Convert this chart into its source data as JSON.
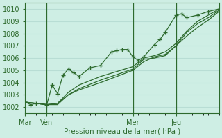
{
  "bg_color": "#ceeee4",
  "grid_color": "#b8ddd4",
  "line_color": "#2d6a2d",
  "marker_color": "#2d6a2d",
  "title": "Pression niveau de la mer( hPa )",
  "ylabel_ticks": [
    1002,
    1003,
    1004,
    1005,
    1006,
    1007,
    1008,
    1009,
    1010
  ],
  "ylim": [
    1001.5,
    1010.5
  ],
  "xlim": [
    0,
    108
  ],
  "day_labels": [
    [
      "Mar",
      0
    ],
    [
      "Ven",
      12
    ],
    [
      "Mer",
      60
    ],
    [
      "Jeu",
      84
    ]
  ],
  "day_vlines": [
    0,
    12,
    60,
    84
  ],
  "series": [
    [
      0,
      1002.4,
      3,
      1002.2,
      6,
      1002.3,
      12,
      1002.2,
      15,
      1003.8,
      18,
      1003.1,
      21,
      1004.6,
      24,
      1005.1,
      27,
      1004.8,
      30,
      1004.5,
      36,
      1005.2,
      42,
      1005.4,
      48,
      1006.5,
      51,
      1006.6,
      54,
      1006.7,
      57,
      1006.7,
      60,
      1006.1,
      63,
      1005.8,
      66,
      1006.1,
      72,
      1007.1,
      75,
      1007.5,
      78,
      1008.1,
      84,
      1009.5,
      87,
      1009.6,
      90,
      1009.3,
      96,
      1009.5,
      102,
      1009.8,
      108,
      1010.0
    ],
    [
      0,
      1002.4,
      12,
      1002.2,
      18,
      1002.3,
      24,
      1003.0,
      30,
      1003.5,
      42,
      1004.2,
      60,
      1005.1,
      66,
      1005.9,
      72,
      1006.0,
      78,
      1006.2,
      84,
      1007.0,
      90,
      1008.1,
      96,
      1008.8,
      102,
      1009.3,
      108,
      1009.9
    ],
    [
      0,
      1002.4,
      12,
      1002.2,
      18,
      1002.3,
      24,
      1003.2,
      30,
      1003.8,
      42,
      1004.5,
      60,
      1005.3,
      66,
      1006.0,
      72,
      1006.2,
      78,
      1006.5,
      84,
      1007.2,
      90,
      1008.2,
      96,
      1009.0,
      102,
      1009.5,
      108,
      1010.0
    ],
    [
      0,
      1002.4,
      12,
      1002.2,
      18,
      1002.2,
      24,
      1003.0,
      30,
      1003.4,
      42,
      1004.0,
      60,
      1005.0,
      66,
      1005.7,
      72,
      1006.1,
      78,
      1006.3,
      84,
      1007.0,
      90,
      1007.8,
      96,
      1008.5,
      102,
      1009.1,
      108,
      1009.8
    ]
  ]
}
